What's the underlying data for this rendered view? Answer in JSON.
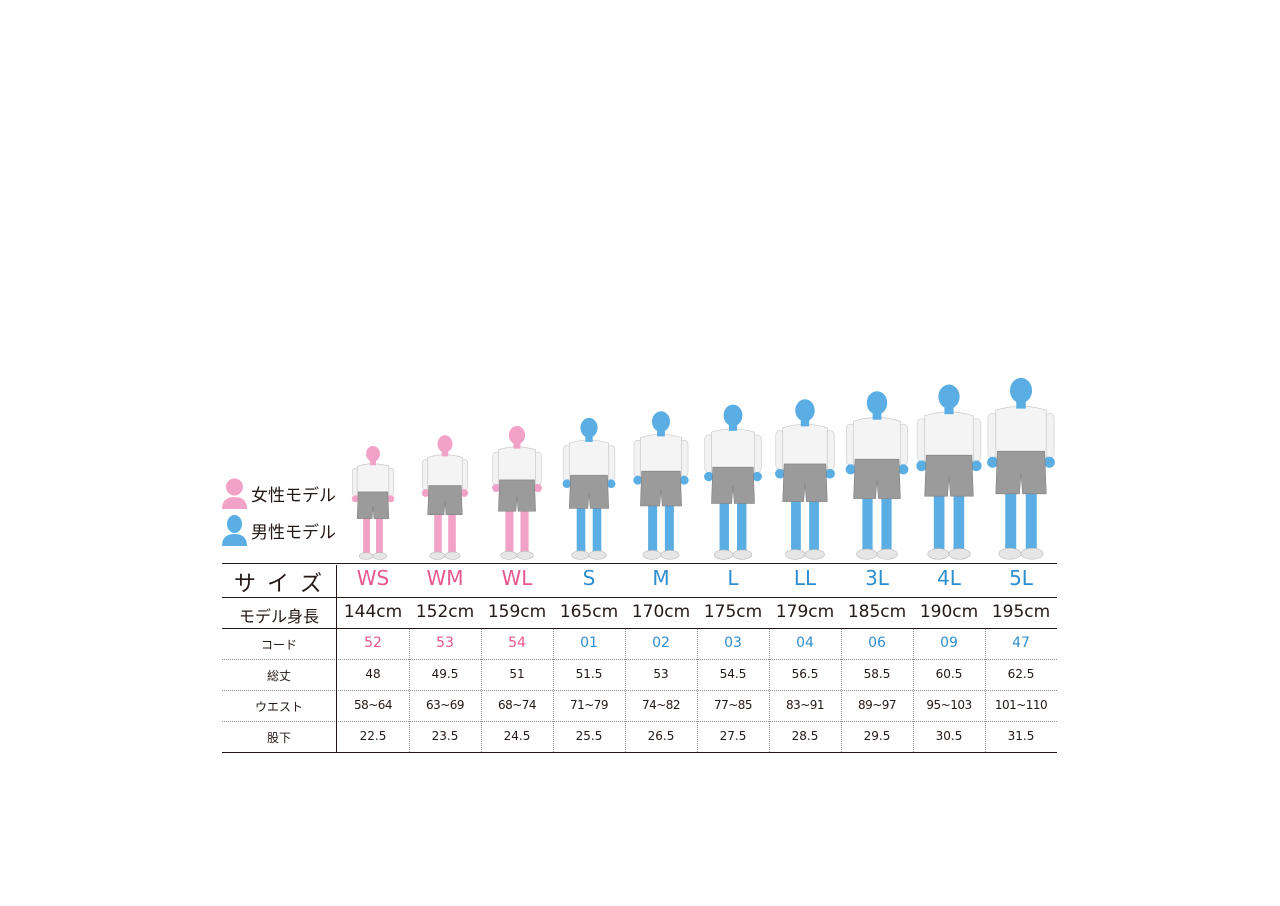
{
  "legend": {
    "female": "女性モデル",
    "male": "男性モデル"
  },
  "colors": {
    "female": "#f2a2c6",
    "male": "#5aaee3",
    "female_text": "#e8568f",
    "male_text": "#2f8ecf"
  },
  "table": {
    "size_header": "サ イ ズ",
    "height_header": "モデル身長",
    "code_header": "コード",
    "length_header": "総丈",
    "waist_header": "ウエスト",
    "inseam_header": "股下",
    "columns": [
      {
        "size": "WS",
        "height": "144cm",
        "code": "52",
        "length": "48",
        "waist": "58~64",
        "inseam": "22.5",
        "gender": "female"
      },
      {
        "size": "WM",
        "height": "152cm",
        "code": "53",
        "length": "49.5",
        "waist": "63~69",
        "inseam": "23.5",
        "gender": "female"
      },
      {
        "size": "WL",
        "height": "159cm",
        "code": "54",
        "length": "51",
        "waist": "68~74",
        "inseam": "24.5",
        "gender": "female"
      },
      {
        "size": "S",
        "height": "165cm",
        "code": "01",
        "length": "51.5",
        "waist": "71~79",
        "inseam": "25.5",
        "gender": "male"
      },
      {
        "size": "M",
        "height": "170cm",
        "code": "02",
        "length": "53",
        "waist": "74~82",
        "inseam": "26.5",
        "gender": "male"
      },
      {
        "size": "L",
        "height": "175cm",
        "code": "03",
        "length": "54.5",
        "waist": "77~85",
        "inseam": "27.5",
        "gender": "male"
      },
      {
        "size": "LL",
        "height": "179cm",
        "code": "04",
        "length": "56.5",
        "waist": "83~91",
        "inseam": "28.5",
        "gender": "male"
      },
      {
        "size": "3L",
        "height": "185cm",
        "code": "06",
        "length": "58.5",
        "waist": "89~97",
        "inseam": "29.5",
        "gender": "male"
      },
      {
        "size": "4L",
        "height": "190cm",
        "code": "09",
        "length": "60.5",
        "waist": "95~103",
        "inseam": "30.5",
        "gender": "male"
      },
      {
        "size": "5L",
        "height": "195cm",
        "code": "47",
        "length": "62.5",
        "waist": "101~110",
        "inseam": "31.5",
        "gender": "male"
      }
    ]
  }
}
